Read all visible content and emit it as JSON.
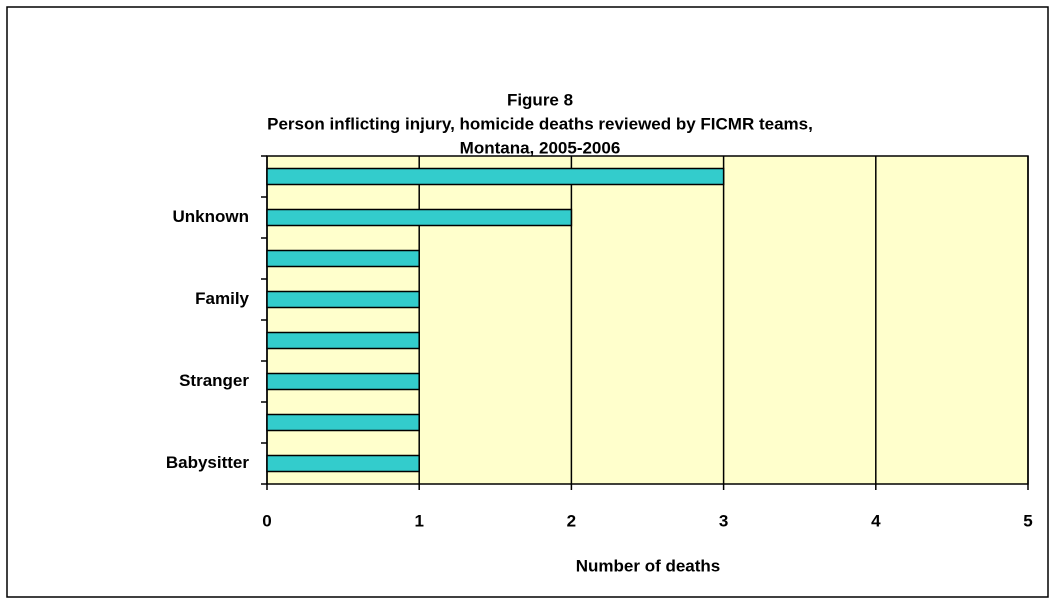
{
  "chart_data": {
    "type": "barh",
    "title": "Figure 8",
    "subtitle": [
      "Person inflicting injury, homicide deaths reviewed by FICMR teams,",
      "Montana, 2005-2006"
    ],
    "categories": [
      null,
      "Unknown",
      null,
      "Family",
      null,
      "Stranger",
      null,
      "Babysitter"
    ],
    "values": [
      3,
      2,
      1,
      1,
      1,
      1,
      1,
      1
    ],
    "color": "#33cccc",
    "xlabel": "Number of deaths",
    "xlim": [
      0,
      5
    ],
    "xticks": [
      0,
      1,
      2,
      3,
      4,
      5
    ],
    "grid": true,
    "background": "#ffffcc"
  }
}
